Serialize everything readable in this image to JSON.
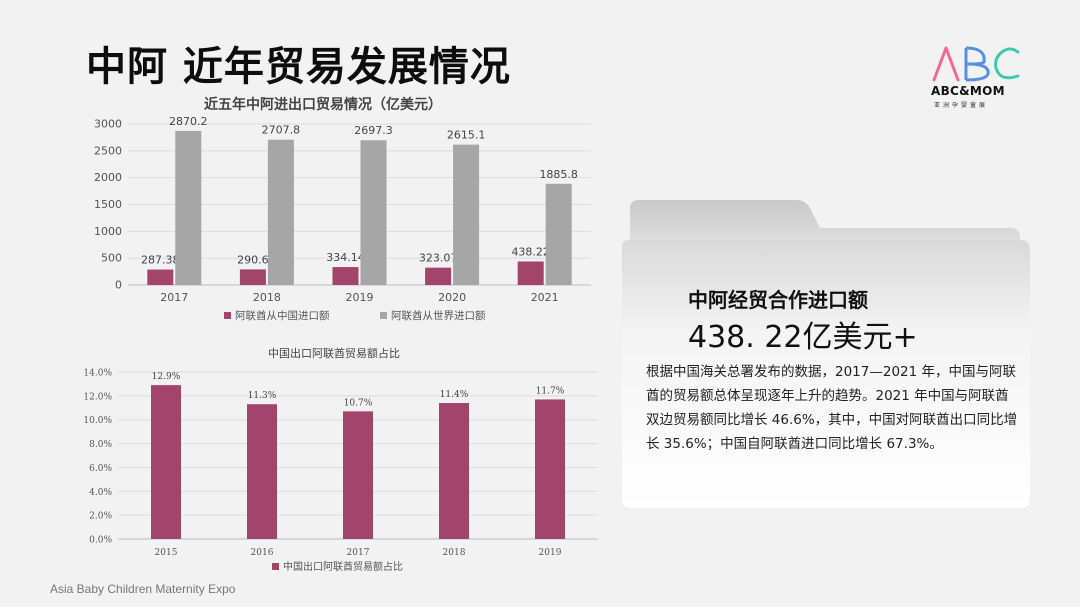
{
  "slide": {
    "title": "中阿 近年贸易发展情况",
    "footer": "Asia Baby Children Maternity Expo"
  },
  "logo": {
    "mark": "ABC",
    "name": "ABC&MOM",
    "subtitle": "亚洲孕婴童展",
    "colors": [
      "#f06b8e",
      "#5a8fe0",
      "#3fc7b0"
    ]
  },
  "colors": {
    "maroon": "#a3456a",
    "gray": "#a6a6a6"
  },
  "chart_data": [
    {
      "type": "bar",
      "title": "近五年中阿进出口贸易情况（亿美元）",
      "categories": [
        "2017",
        "2018",
        "2019",
        "2020",
        "2021"
      ],
      "series": [
        {
          "name": "阿联酋从中国进口额",
          "values": [
            287.38,
            290.6,
            334.14,
            323.07,
            438.22
          ],
          "labels": [
            "287.38",
            "290.6",
            "334.14",
            "323.07",
            "438.22"
          ]
        },
        {
          "name": "阿联酋从世界进口额",
          "values": [
            2870.2,
            2707.8,
            2697.3,
            2615.1,
            1885.8
          ],
          "labels": [
            "2870.2",
            "2707.8",
            "2697.3",
            "2615.1",
            "1885.8"
          ]
        }
      ],
      "yticks": [
        "0",
        "500",
        "1000",
        "1500",
        "2000",
        "2500",
        "3000"
      ],
      "ylim": [
        0,
        3000
      ],
      "grid": true,
      "legend": "bottom"
    },
    {
      "type": "bar",
      "title": "中国出口阿联酋贸易额占比",
      "categories": [
        "2015",
        "2016",
        "2017",
        "2018",
        "2019"
      ],
      "series": [
        {
          "name": "中国出口阿联酋贸易额占比",
          "values": [
            12.9,
            11.3,
            10.7,
            11.4,
            11.7
          ],
          "labels": [
            "12.9%",
            "11.3%",
            "10.7%",
            "11.4%",
            "11.7%"
          ]
        }
      ],
      "yticks": [
        "0.0%",
        "2.0%",
        "4.0%",
        "6.0%",
        "8.0%",
        "10.0%",
        "12.0%",
        "14.0%"
      ],
      "ylim": [
        0,
        14
      ],
      "grid": true,
      "legend": "bottom"
    }
  ],
  "card": {
    "heading": "中阿经贸合作进口额",
    "value": "438. 22亿美元+",
    "body": "根据中国海关总署发布的数据，2017—2021 年，中国与阿联酋的贸易额总体呈现逐年上升的趋势。2021 年中国与阿联酋双边贸易额同比增长 46.6%，其中，中国对阿联酋出口同比增长 35.6%；中国自阿联酋进口同比增长 67.3%。"
  }
}
